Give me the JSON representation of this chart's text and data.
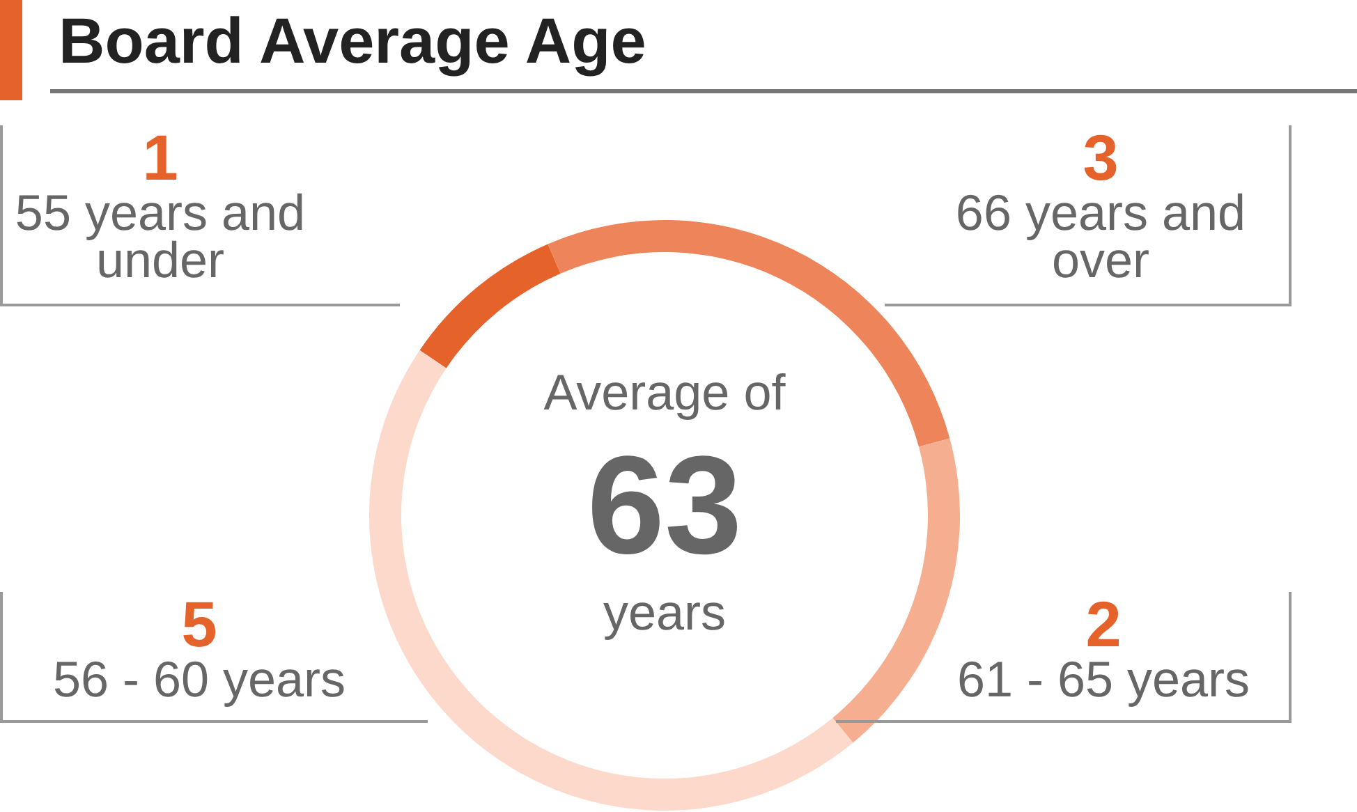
{
  "chart_data": {
    "type": "donut",
    "title": "Board Average Age",
    "categories": [
      "55 years and under",
      "66 years and over",
      "61 - 65 years",
      "56 - 60 years"
    ],
    "values": [
      1,
      3,
      2,
      5
    ],
    "colors": [
      "#e5622b",
      "#ee8459",
      "#f6ae90",
      "#fcd9cb"
    ],
    "data_labels": true,
    "legend": false,
    "annotations": [
      "Average of",
      "63",
      "years"
    ]
  }
}
